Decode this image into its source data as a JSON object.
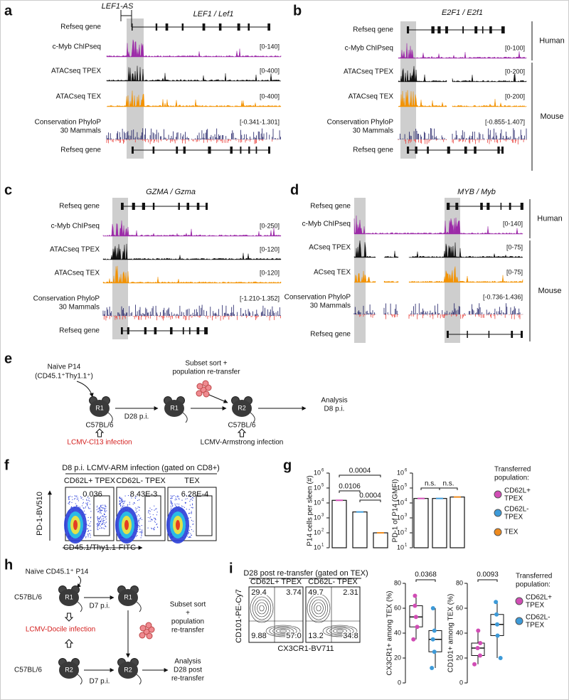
{
  "panels": {
    "a": {
      "letter": "a",
      "gene_labels": [
        "LEF1-AS",
        "LEF1 / Lef1"
      ],
      "tracks": [
        {
          "label": "Refseq gene"
        },
        {
          "label": "c-Myb ChIPseq",
          "range": "[0-140]",
          "color": "#9c2aa8"
        },
        {
          "label": "ATACseq TPEX",
          "range": "[0-400]",
          "color": "#111111"
        },
        {
          "label": "ATACseq TEX",
          "range": "[0-400]",
          "color": "#f39200"
        },
        {
          "label": "Conservation PhyloP",
          "label2": "30 Mammals",
          "range": "[-0.341-1.301]",
          "color": "#1b1b63"
        },
        {
          "label": "Refseq gene"
        }
      ]
    },
    "b": {
      "letter": "b",
      "gene_labels": [
        "E2F1 / E2f1"
      ],
      "species": [
        "Human",
        "Mouse"
      ],
      "tracks": [
        {
          "label": "Refseq gene"
        },
        {
          "label": "c-Myb ChIPseq",
          "range": "[0-100]",
          "color": "#9c2aa8"
        },
        {
          "label": "ATACseq TPEX",
          "range": "[0-200]",
          "color": "#111111"
        },
        {
          "label": "ATACseq TEX",
          "range": "[0-200]",
          "color": "#f39200"
        },
        {
          "label": "Conservation PhyloP",
          "label2": "30 Mammals",
          "range": "[-0.855-1.407]",
          "color": "#1b1b63"
        },
        {
          "label": "Refseq gene"
        }
      ]
    },
    "c": {
      "letter": "c",
      "gene_labels": [
        "GZMA / Gzma"
      ],
      "tracks": [
        {
          "label": "Refseq gene"
        },
        {
          "label": "c-Myb ChIPseq",
          "range": "[0-250]",
          "color": "#9c2aa8"
        },
        {
          "label": "ATACseq TPEX",
          "range": "[0-120]",
          "color": "#111111"
        },
        {
          "label": "ATACseq TEX",
          "range": "[0-120]",
          "color": "#f39200"
        },
        {
          "label": "Conservation PhyloP",
          "label2": "30 Mammals",
          "range": "[-1.210-1.352]",
          "color": "#1b1b63"
        },
        {
          "label": "Refseq gene"
        }
      ]
    },
    "d": {
      "letter": "d",
      "gene_labels": [
        "MYB / Myb"
      ],
      "species": [
        "Human",
        "Mouse"
      ],
      "tracks": [
        {
          "label": "Refseq gene"
        },
        {
          "label": "c-Myb ChIPseq",
          "range": "[0-140]",
          "color": "#9c2aa8"
        },
        {
          "label": "ACseq TPEX",
          "range": "[0-75]",
          "color": "#111111"
        },
        {
          "label": "ACseq TEX",
          "range": "[0-75]",
          "color": "#f39200"
        },
        {
          "label": "Conservation PhyloP",
          "label2": "30 Mammals",
          "range": "[-0.736-1.436]",
          "color": "#1b1b63"
        },
        {
          "label": "Refseq gene"
        }
      ]
    },
    "e": {
      "letter": "e",
      "naive": [
        "Naïve P14",
        "(CD45.1⁺Thy1.1⁺)"
      ],
      "mice": [
        "R1",
        "R1",
        "R2"
      ],
      "step": "D28 p.i.",
      "sort": [
        "Subset sort +",
        "population re-transfer"
      ],
      "analysis": [
        "Analysis",
        "D8 p.i."
      ],
      "strain": [
        "C57BL/6",
        "C57BL/6"
      ],
      "infections": [
        "LCMV-Cl13 infection",
        "LCMV-Armstrong infection"
      ]
    },
    "f": {
      "letter": "f",
      "title": "D8 p.i. LCMV-ARM infection (gated on CD8+)",
      "ylabel": "PD-1-BV510",
      "xlabel": "CD45.1/Thy1.1-FITC",
      "plots": [
        {
          "title": "CD62L+ TPEX",
          "value": "0.036"
        },
        {
          "title": "CD62L- TPEX",
          "value": "8.43E-3"
        },
        {
          "title": "TEX",
          "value": "6.28E-4"
        }
      ]
    },
    "g": {
      "letter": "g",
      "charts": [
        {
          "type": "bar",
          "ylabel": "P14 cells per sleen (#)",
          "values": [
            15000,
            2500,
            100
          ],
          "colors": [
            "#d14db5",
            "#3d9ad8",
            "#ee8a1d"
          ],
          "log": true,
          "ylim": [
            10,
            1000000
          ],
          "yticks": [
            {
              "value": 10,
              "label": "10",
              "sup": "1"
            },
            {
              "value": 100,
              "label": "10",
              "sup": "2"
            },
            {
              "value": 1000,
              "label": "10",
              "sup": "3"
            },
            {
              "value": 10000,
              "label": "10",
              "sup": "4"
            },
            {
              "value": 100000,
              "label": "10",
              "sup": "5"
            },
            {
              "value": 1000000,
              "label": "10",
              "sup": "6"
            }
          ],
          "annotations": [
            "0.0004",
            "0.0106",
            "0.0004"
          ]
        },
        {
          "type": "bar",
          "ylabel": "PD-1 of P14 (GMFI)",
          "values": [
            20000,
            20000,
            25000
          ],
          "colors": [
            "#d14db5",
            "#3d9ad8",
            "#ee8a1d"
          ],
          "log": true,
          "ylim": [
            10,
            1000000
          ],
          "yticks": [
            {
              "value": 10,
              "label": "10",
              "sup": "1"
            },
            {
              "value": 100,
              "label": "10",
              "sup": "2"
            },
            {
              "value": 1000,
              "label": "10",
              "sup": "3"
            },
            {
              "value": 10000,
              "label": "10",
              "sup": "4"
            },
            {
              "value": 100000,
              "label": "10",
              "sup": "5"
            },
            {
              "value": 1000000,
              "label": "10",
              "sup": "6"
            }
          ],
          "annotations": [
            "n.s.",
            "n.s."
          ]
        }
      ],
      "legend": {
        "title": [
          "Transferred",
          "population:"
        ],
        "entries": [
          [
            "CD62L+",
            "TPEX"
          ],
          [
            "CD62L-",
            "TPEX"
          ],
          [
            "TEX"
          ]
        ]
      }
    },
    "h": {
      "letter": "h",
      "naive": "Naïve CD45.1⁺ P14",
      "mice": [
        "R1",
        "R1",
        "R2",
        "R2"
      ],
      "strain": [
        "C57BL/6",
        "C57BL/6"
      ],
      "infection": "LCMV-Docile infection",
      "steps": [
        "D7 p.i.",
        "D7 p.i."
      ],
      "sort": [
        "Subset sort",
        "+",
        "population",
        "re-transfer"
      ],
      "analysis": [
        "Analysis",
        "D28 post",
        "re-transfer"
      ]
    },
    "i": {
      "letter": "i",
      "title": "D28 post re-transfer (gated on TEX)",
      "ylabel": "CD101-PE-Cy7",
      "xlabel": "CX3CR1-BV711",
      "plots": [
        {
          "title": "CD62L+ TPEX",
          "quadrants": [
            "29.4",
            "3.74",
            "9.88",
            "57.0"
          ]
        },
        {
          "title": "CD62L- TPEX",
          "quadrants": [
            "49.7",
            "2.31",
            "13.2",
            "34.8"
          ]
        }
      ],
      "charts": [
        {
          "type": "box",
          "ylabel": "CX3CR1+ among TEX (%)",
          "ylim": [
            0,
            80
          ],
          "yticks": [
            0,
            20,
            40,
            60,
            80
          ],
          "annotation": "0.0368",
          "boxes": [
            {
              "color": "#d14db5",
              "min": 35,
              "q1": 45,
              "median": 53,
              "q3": 62,
              "max": 70
            },
            {
              "color": "#3d9ad8",
              "min": 12,
              "q1": 25,
              "median": 35,
              "q3": 42,
              "max": 60
            }
          ]
        },
        {
          "type": "box",
          "ylabel": "CD101+ among TEX (%)",
          "ylim": [
            0,
            80
          ],
          "yticks": [
            0,
            20,
            40,
            60,
            80
          ],
          "annotation": "0.0093",
          "boxes": [
            {
              "color": "#d14db5",
              "min": 15,
              "q1": 22,
              "median": 28,
              "q3": 32,
              "max": 42
            },
            {
              "color": "#3d9ad8",
              "min": 20,
              "q1": 38,
              "median": 47,
              "q3": 55,
              "max": 65
            }
          ]
        }
      ],
      "legend": {
        "title": [
          "Transferred",
          "population:"
        ],
        "entries": [
          [
            "CD62L+",
            "TPEX"
          ],
          [
            "CD62L-",
            "TPEX"
          ]
        ]
      }
    }
  }
}
